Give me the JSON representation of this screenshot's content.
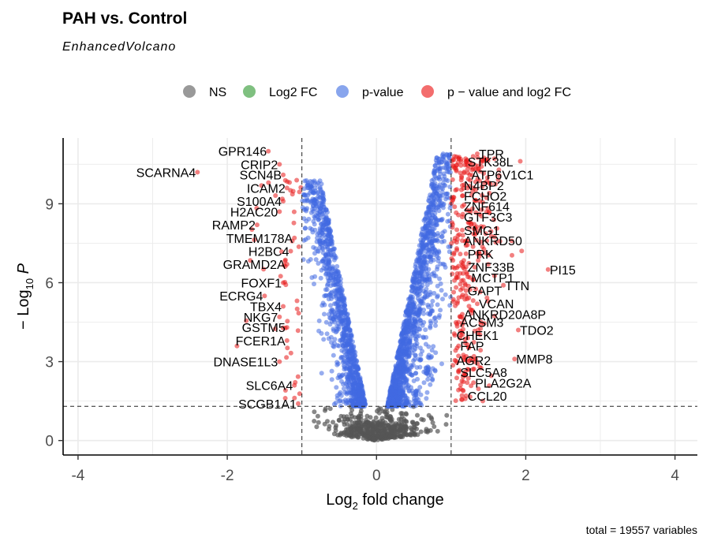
{
  "chart_data": {
    "type": "scatter",
    "title": "PAH vs. Control",
    "subtitle": "EnhancedVolcano",
    "caption": "total = 19557 variables",
    "xlabel": "Log2 fold change",
    "ylabel": "-Log10 P",
    "xlim": [
      -4.2,
      4.3
    ],
    "ylim": [
      -0.55,
      11.5
    ],
    "x_ticks": [
      -4,
      -2,
      0,
      2,
      4
    ],
    "y_ticks": [
      0,
      3,
      6,
      9
    ],
    "x_tick_labels": [
      "-4",
      "-2",
      "0",
      "2",
      "4"
    ],
    "y_tick_labels": [
      "0",
      "3",
      "6",
      "9"
    ],
    "fc_cutoff": 1,
    "p_cutoff_log10": 1.3,
    "grid": true,
    "legend_position": "top",
    "legend": [
      {
        "key": "NS",
        "label": "NS",
        "color": "#7f7f7f"
      },
      {
        "key": "FC",
        "label": "Log2 FC",
        "color": "#5fb060"
      },
      {
        "key": "P",
        "label": "p-value",
        "color": "#6a8ee8"
      },
      {
        "key": "FCP",
        "label": "p − value and log2 FC",
        "color": "#f04848"
      }
    ],
    "colors": {
      "NS": "#555555",
      "FC": "#4a9a4a",
      "P": "#4169e1",
      "FCP": "#e81818"
    },
    "total_variables": 19557,
    "labeled_genes": [
      {
        "gene": "TPR",
        "x": 1.35,
        "y": 10.9
      },
      {
        "gene": "GPR146",
        "x": -1.45,
        "y": 11.0
      },
      {
        "gene": "CRIP2",
        "x": -1.3,
        "y": 10.5
      },
      {
        "gene": "STK38L",
        "x": 1.2,
        "y": 10.6
      },
      {
        "gene": "SCARNA4",
        "x": -2.4,
        "y": 10.2
      },
      {
        "gene": "SCN4B",
        "x": -1.25,
        "y": 10.1
      },
      {
        "gene": "ATP6V1C1",
        "x": 1.25,
        "y": 10.1
      },
      {
        "gene": "ICAM2",
        "x": -1.2,
        "y": 9.6
      },
      {
        "gene": "N4BP2",
        "x": 1.15,
        "y": 9.7
      },
      {
        "gene": "FCHO2",
        "x": 1.15,
        "y": 9.3
      },
      {
        "gene": "S100A4",
        "x": -1.25,
        "y": 9.1
      },
      {
        "gene": "ZNF614",
        "x": 1.15,
        "y": 8.9
      },
      {
        "gene": "H2AC20",
        "x": -1.3,
        "y": 8.7
      },
      {
        "gene": "GTF3C3",
        "x": 1.15,
        "y": 8.5
      },
      {
        "gene": "RAMP2",
        "x": -1.6,
        "y": 8.2
      },
      {
        "gene": "SMG1",
        "x": 1.15,
        "y": 8.0
      },
      {
        "gene": "TMEM178A",
        "x": -1.1,
        "y": 7.7
      },
      {
        "gene": "ANKRD50",
        "x": 1.15,
        "y": 7.6
      },
      {
        "gene": "H2BC4",
        "x": -1.15,
        "y": 7.2
      },
      {
        "gene": "PRK",
        "x": 1.2,
        "y": 7.1
      },
      {
        "gene": "GRAMD2A",
        "x": -1.2,
        "y": 6.7
      },
      {
        "gene": "ZNF33B",
        "x": 1.2,
        "y": 6.6
      },
      {
        "gene": "PI15",
        "x": 2.3,
        "y": 6.5
      },
      {
        "gene": "MCTP1",
        "x": 1.25,
        "y": 6.2
      },
      {
        "gene": "FOXF1",
        "x": -1.25,
        "y": 6.0
      },
      {
        "gene": "TTN",
        "x": 1.7,
        "y": 5.9
      },
      {
        "gene": "GAPT",
        "x": 1.2,
        "y": 5.7
      },
      {
        "gene": "ECRG4",
        "x": -1.5,
        "y": 5.5
      },
      {
        "gene": "TBX4",
        "x": -1.25,
        "y": 5.1
      },
      {
        "gene": "VCAN",
        "x": 1.35,
        "y": 5.2
      },
      {
        "gene": "NKG7",
        "x": -1.3,
        "y": 4.7
      },
      {
        "gene": "ANKRD20A8P",
        "x": 1.15,
        "y": 4.8
      },
      {
        "gene": "ACSM3",
        "x": 1.1,
        "y": 4.5
      },
      {
        "gene": "GSTM5",
        "x": -1.2,
        "y": 4.3
      },
      {
        "gene": "TDO2",
        "x": 1.9,
        "y": 4.2
      },
      {
        "gene": "CHEK1",
        "x": 1.05,
        "y": 4.0
      },
      {
        "gene": "FCER1A",
        "x": -1.2,
        "y": 3.8
      },
      {
        "gene": "FAP",
        "x": 1.1,
        "y": 3.6
      },
      {
        "gene": "MMP8",
        "x": 1.85,
        "y": 3.1
      },
      {
        "gene": "DNASE1L3",
        "x": -1.3,
        "y": 3.0
      },
      {
        "gene": "AGR2",
        "x": 1.05,
        "y": 3.05
      },
      {
        "gene": "SLC5A8",
        "x": 1.1,
        "y": 2.6
      },
      {
        "gene": "PLA2G2A",
        "x": 1.3,
        "y": 2.2
      },
      {
        "gene": "SLC6A4",
        "x": -1.1,
        "y": 2.1
      },
      {
        "gene": "CCL20",
        "x": 1.2,
        "y": 1.7
      },
      {
        "gene": "SCGB1A1",
        "x": -1.05,
        "y": 1.4
      }
    ]
  }
}
